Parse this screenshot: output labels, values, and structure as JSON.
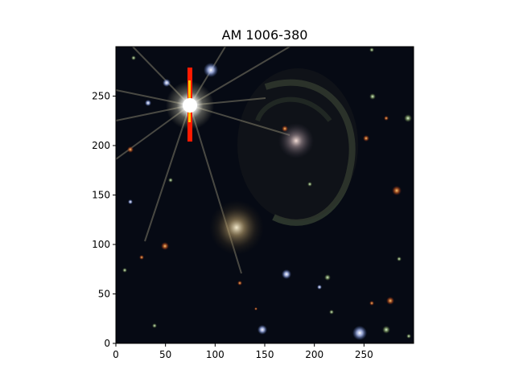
{
  "figure": {
    "title": "AM 1006-380"
  },
  "chart_data": {
    "type": "image",
    "title": "AM 1006-380",
    "xlim": [
      0,
      300
    ],
    "ylim": [
      0,
      300
    ],
    "x_ticks": [
      "0",
      "50",
      "100",
      "150",
      "200",
      "250"
    ],
    "y_ticks": [
      "0",
      "50",
      "100",
      "150",
      "200",
      "250"
    ],
    "grid": false,
    "colors": {
      "background": "#060a14",
      "marker": "#ff1a00",
      "marker_highlight": "#ffd400"
    }
  }
}
